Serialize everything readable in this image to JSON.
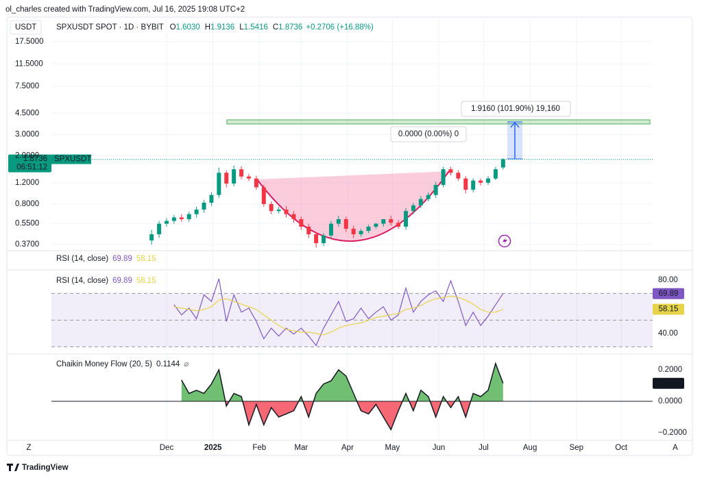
{
  "attribution": "ol_charles created with TradingView.com, Jul 16, 2025 19:08 UTC+2",
  "footer": "TradingView",
  "corner_left": "Z",
  "corner_right": "A",
  "chart_data": [
    {
      "type": "candlestick",
      "title": "SPXUSDT SPOT · 1D · BYBIT",
      "currency": "USDT",
      "symbol": "SPXUSDT",
      "countdown": "06:51:12",
      "ohlc_letters": [
        "O",
        "H",
        "L",
        "C"
      ],
      "ohlc_value_labels": [
        "1.6030",
        "1.9136",
        "1.5416",
        "1.8736"
      ],
      "change": "+0.2706 (+16.88%)",
      "last_label": "1.8736",
      "measure_label": "1.9160 (101.90%) 19,160",
      "measure_label_2": "0.0000 (0.00%) 0",
      "up_color": "#089981",
      "down_color": "#f23645",
      "log": true,
      "grid": true,
      "y_axis_side": "left",
      "xlim": [
        -77,
        325
      ],
      "x": [
        -10,
        -5,
        0,
        5,
        10,
        15,
        20,
        25,
        30,
        35,
        40,
        45,
        50,
        55,
        60,
        65,
        70,
        75,
        80,
        85,
        90,
        95,
        100,
        105,
        110,
        115,
        120,
        125,
        130,
        135,
        140,
        145,
        150,
        155,
        160,
        165,
        170,
        175,
        180,
        185,
        190,
        195,
        200,
        205,
        210,
        215,
        220,
        225
      ],
      "open": [
        0.4,
        0.45,
        0.55,
        0.58,
        0.62,
        0.6,
        0.66,
        0.72,
        0.82,
        0.95,
        1.45,
        1.18,
        1.55,
        1.35,
        1.3,
        1.1,
        0.8,
        0.7,
        0.72,
        0.66,
        0.6,
        0.52,
        0.45,
        0.38,
        0.44,
        0.55,
        0.6,
        0.5,
        0.45,
        0.48,
        0.52,
        0.55,
        0.6,
        0.56,
        0.52,
        0.7,
        0.78,
        0.88,
        0.95,
        1.15,
        1.55,
        1.45,
        1.3,
        1.05,
        1.25,
        1.2,
        1.3,
        1.603
      ],
      "high": [
        0.49,
        0.58,
        0.61,
        0.65,
        0.66,
        0.69,
        0.76,
        0.86,
        1.0,
        1.6,
        1.52,
        1.66,
        1.64,
        1.42,
        1.37,
        1.15,
        0.84,
        0.76,
        0.77,
        0.7,
        0.63,
        0.55,
        0.47,
        0.46,
        0.58,
        0.64,
        0.63,
        0.53,
        0.5,
        0.54,
        0.56,
        0.59,
        0.64,
        0.59,
        0.74,
        0.82,
        0.93,
        1.0,
        1.22,
        1.62,
        1.62,
        1.52,
        1.36,
        1.3,
        1.3,
        1.36,
        1.62,
        1.9136
      ],
      "low": [
        0.37,
        0.42,
        0.52,
        0.55,
        0.57,
        0.57,
        0.62,
        0.68,
        0.77,
        0.9,
        1.1,
        1.12,
        1.28,
        1.24,
        1.05,
        0.76,
        0.66,
        0.67,
        0.62,
        0.56,
        0.49,
        0.42,
        0.35,
        0.36,
        0.42,
        0.52,
        0.47,
        0.42,
        0.43,
        0.46,
        0.5,
        0.52,
        0.53,
        0.5,
        0.49,
        0.66,
        0.74,
        0.84,
        0.9,
        1.1,
        1.38,
        1.24,
        0.98,
        1.0,
        1.14,
        1.15,
        1.26,
        1.5416
      ],
      "close": [
        0.45,
        0.55,
        0.58,
        0.62,
        0.6,
        0.66,
        0.72,
        0.82,
        0.95,
        1.45,
        1.18,
        1.55,
        1.35,
        1.3,
        1.1,
        0.8,
        0.7,
        0.72,
        0.66,
        0.6,
        0.52,
        0.45,
        0.38,
        0.44,
        0.55,
        0.6,
        0.5,
        0.45,
        0.48,
        0.52,
        0.55,
        0.6,
        0.56,
        0.52,
        0.7,
        0.78,
        0.88,
        0.95,
        1.15,
        1.55,
        1.45,
        1.3,
        1.05,
        1.25,
        1.2,
        1.3,
        1.55,
        1.8736
      ],
      "ylim": [
        0.334,
        26.9
      ],
      "yticks": [
        {
          "value": 17.5,
          "label": "17.5000"
        },
        {
          "value": 11.5,
          "label": "11.5000"
        },
        {
          "value": 7.5,
          "label": "7.5000"
        },
        {
          "value": 4.5,
          "label": "4.5000"
        },
        {
          "value": 3,
          "label": "3.0000"
        },
        {
          "value": 2,
          "label": "2.0000"
        },
        {
          "value": 1.2,
          "label": "1.2000"
        },
        {
          "value": 0.8,
          "label": "0.8000"
        },
        {
          "value": 0.55,
          "label": "0.5500"
        },
        {
          "value": 0.37,
          "label": "0.3700"
        }
      ]
    },
    {
      "type": "line",
      "title": "RSI (14, close)",
      "y_axis_side": "right",
      "xlim": [
        -77,
        325
      ],
      "x": [
        5,
        10,
        15,
        20,
        25,
        30,
        35,
        40,
        45,
        50,
        55,
        60,
        65,
        70,
        75,
        80,
        85,
        90,
        95,
        100,
        105,
        110,
        115,
        120,
        125,
        130,
        135,
        140,
        145,
        150,
        155,
        160,
        165,
        170,
        175,
        180,
        185,
        190,
        195,
        200,
        205,
        210,
        215,
        220,
        225
      ],
      "series": [
        {
          "color": "#7e57c2",
          "values": [
            61.5,
            54,
            59,
            51,
            69,
            64,
            81,
            49,
            69,
            56,
            59,
            49,
            36,
            44,
            38,
            44,
            39.5,
            44,
            38,
            31,
            44,
            54,
            64,
            49,
            51,
            59,
            51,
            56,
            60,
            50,
            54,
            74,
            56,
            64,
            69,
            72,
            64,
            79.5,
            64,
            46,
            56,
            46,
            53,
            61.5,
            69.89
          ]
        },
        {
          "color": "#e6d34a",
          "values": [
            60,
            59,
            58,
            57,
            58,
            60,
            65,
            66,
            64,
            62,
            60,
            58,
            54,
            50,
            46,
            43,
            42,
            41,
            41,
            40,
            39,
            41,
            44,
            46,
            47,
            48,
            50,
            52,
            53,
            54,
            55,
            58,
            59,
            61,
            64,
            66,
            67,
            68,
            67,
            65,
            62,
            58,
            56,
            56,
            58.15
          ]
        }
      ],
      "levels": [
        70,
        50,
        30
      ],
      "ylim": [
        25.6,
        87.2
      ],
      "yticks": [
        {
          "value": 80,
          "label": "80.00"
        },
        {
          "value": 40,
          "label": "40.00"
        }
      ]
    },
    {
      "type": "area",
      "title": "Chaikin Money Flow (20, 5)",
      "icon": "⌀",
      "y_axis_side": "right",
      "xlim": [
        -77,
        325
      ],
      "up_color": "#4caf50",
      "down_color": "#f23645",
      "x": [
        10,
        15,
        20,
        25,
        30,
        35,
        40,
        45,
        50,
        55,
        60,
        65,
        70,
        75,
        80,
        85,
        90,
        95,
        100,
        105,
        110,
        115,
        120,
        125,
        130,
        135,
        140,
        145,
        150,
        155,
        160,
        165,
        170,
        175,
        180,
        185,
        190,
        195,
        200,
        205,
        210,
        215,
        220,
        225
      ],
      "values": [
        0.135,
        0.05,
        0.07,
        0.05,
        0.11,
        0.2,
        -0.03,
        0.05,
        0.03,
        -0.15,
        -0.02,
        -0.15,
        -0.04,
        -0.1,
        -0.08,
        -0.06,
        0.03,
        -0.1,
        0.05,
        0.11,
        0.13,
        0.2,
        0.16,
        0.05,
        -0.06,
        -0.08,
        -0.02,
        -0.1,
        -0.18,
        -0.06,
        0.05,
        -0.06,
        0.07,
        0.03,
        -0.1,
        0.03,
        -0.04,
        0.03,
        -0.1,
        0.05,
        0.03,
        0.07,
        0.24,
        0.1144
      ],
      "ylim": [
        -0.2478,
        0.2957
      ],
      "yticks": [
        {
          "value": 0.2,
          "label": "0.2000"
        },
        {
          "value": 0,
          "label": "0.0000"
        },
        {
          "value": -0.2,
          "label": "−0.2000"
        }
      ],
      "xticks": [
        {
          "value": 0,
          "label": "Dec"
        },
        {
          "value": 31,
          "label": "2025"
        },
        {
          "value": 62,
          "label": "Feb"
        },
        {
          "value": 90,
          "label": "Mar"
        },
        {
          "value": 121,
          "label": "Apr"
        },
        {
          "value": 151,
          "label": "May"
        },
        {
          "value": 182,
          "label": "Jun"
        },
        {
          "value": 212,
          "label": "Jul"
        },
        {
          "value": 243,
          "label": "Aug"
        },
        {
          "value": 274,
          "label": "Sep"
        },
        {
          "value": 304,
          "label": "Oct"
        }
      ]
    }
  ]
}
